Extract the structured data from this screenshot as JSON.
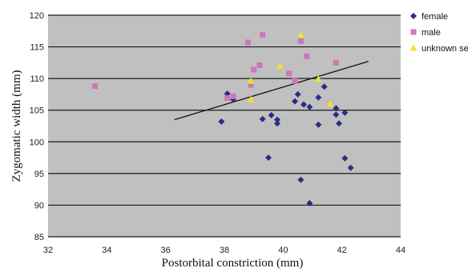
{
  "chart_data": {
    "type": "scatter",
    "title": "",
    "xlabel": "Postorbital constriction (mm)",
    "ylabel": "Zygomatic width (mm)",
    "xlim": [
      32,
      44
    ],
    "ylim": [
      85,
      120
    ],
    "xticks": [
      32,
      34,
      36,
      38,
      40,
      42,
      44
    ],
    "yticks": [
      85,
      90,
      95,
      100,
      105,
      110,
      115,
      120
    ],
    "x_tick_labels": [
      "32",
      "34",
      "36",
      "38",
      "40",
      "42",
      "44"
    ],
    "y_tick_labels": [
      "85",
      "90",
      "95",
      "100",
      "105",
      "110",
      "115",
      "120"
    ],
    "grid": "horizontal",
    "legend_position": "right",
    "background_color": "#c0c0c0",
    "series": [
      {
        "name": "female",
        "marker": "diamond",
        "color": "#2b2b8a",
        "points": [
          [
            37.9,
            103.2
          ],
          [
            38.1,
            107.6
          ],
          [
            38.3,
            106.7
          ],
          [
            39.3,
            103.6
          ],
          [
            39.6,
            104.2
          ],
          [
            39.8,
            103.5
          ],
          [
            39.8,
            102.9
          ],
          [
            39.5,
            97.5
          ],
          [
            40.4,
            106.4
          ],
          [
            40.5,
            107.5
          ],
          [
            40.7,
            105.9
          ],
          [
            40.9,
            105.5
          ],
          [
            41.2,
            107.0
          ],
          [
            41.4,
            108.7
          ],
          [
            41.2,
            102.7
          ],
          [
            41.8,
            105.3
          ],
          [
            41.8,
            104.3
          ],
          [
            41.9,
            102.9
          ],
          [
            42.1,
            104.6
          ],
          [
            42.1,
            97.4
          ],
          [
            42.3,
            95.9
          ],
          [
            40.6,
            94.0
          ],
          [
            40.9,
            90.3
          ]
        ]
      },
      {
        "name": "male",
        "marker": "square",
        "color": "#cc77bb",
        "points": [
          [
            33.6,
            108.8
          ],
          [
            38.1,
            106.9
          ],
          [
            38.3,
            107.2
          ],
          [
            38.8,
            115.7
          ],
          [
            38.9,
            109.0
          ],
          [
            39.0,
            111.4
          ],
          [
            39.2,
            112.1
          ],
          [
            39.3,
            116.9
          ],
          [
            40.2,
            110.8
          ],
          [
            40.4,
            109.6
          ],
          [
            40.6,
            115.9
          ],
          [
            40.8,
            113.5
          ],
          [
            41.8,
            112.5
          ]
        ]
      },
      {
        "name": "unknown sex",
        "marker": "triangle",
        "color": "#f0e030",
        "points": [
          [
            38.9,
            109.6
          ],
          [
            38.9,
            106.7
          ],
          [
            39.9,
            112.0
          ],
          [
            40.6,
            116.9
          ],
          [
            41.2,
            109.9
          ],
          [
            41.6,
            106.0
          ]
        ]
      }
    ],
    "trendline": {
      "from": [
        36.3,
        103.5
      ],
      "to": [
        42.9,
        112.7
      ],
      "color": "#111111"
    }
  }
}
